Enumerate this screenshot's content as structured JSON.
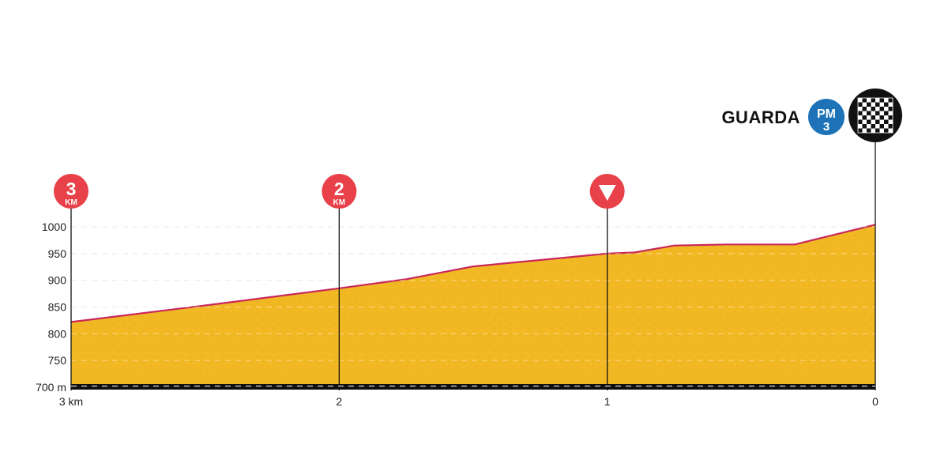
{
  "colors": {
    "fill": "#f2b824",
    "fill_texture": "#d99c12",
    "profile_line": "#c8285a",
    "marker_red": "#e8414a",
    "pm_blue": "#1e73b8",
    "finish_black": "#111111",
    "grid": "#d9d9d9",
    "baseline": "#111111",
    "axis_text": "#222222"
  },
  "chart_data": {
    "type": "area",
    "title": "",
    "xlabel": "",
    "ylabel": "",
    "x_direction": "descending",
    "xlim": [
      3,
      0
    ],
    "ylim": [
      700,
      1005
    ],
    "x_ticks": [
      {
        "value": 3,
        "label": "3 km"
      },
      {
        "value": 2,
        "label": "2"
      },
      {
        "value": 1,
        "label": "1"
      },
      {
        "value": 0,
        "label": "0"
      }
    ],
    "y_ticks": [
      {
        "value": 700,
        "label": "700 m"
      },
      {
        "value": 750,
        "label": "750"
      },
      {
        "value": 800,
        "label": "800"
      },
      {
        "value": 850,
        "label": "850"
      },
      {
        "value": 900,
        "label": "900"
      },
      {
        "value": 950,
        "label": "950"
      },
      {
        "value": 1000,
        "label": "1000"
      }
    ],
    "grid": "horizontal-dashed",
    "series": [
      {
        "x": [
          3.0,
          2.5,
          2.0,
          1.75,
          1.5,
          1.25,
          1.0,
          0.9,
          0.75,
          0.55,
          0.3,
          0.0
        ],
        "y": [
          822,
          853,
          885,
          902,
          926,
          938,
          950,
          952,
          965,
          967,
          967,
          1004
        ]
      }
    ],
    "markers": [
      {
        "x": 3,
        "kind": "km",
        "number": "3",
        "unit": "KM"
      },
      {
        "x": 2,
        "kind": "km",
        "number": "2",
        "unit": "KM"
      },
      {
        "x": 1,
        "kind": "flamme-rouge",
        "icon": "triangle-down-icon"
      },
      {
        "x": 0,
        "kind": "finish",
        "icon": "checkered-flag-icon"
      }
    ],
    "finish": {
      "name": "GUARDA",
      "climb_category_label": "PM",
      "climb_category_number": "3"
    }
  }
}
